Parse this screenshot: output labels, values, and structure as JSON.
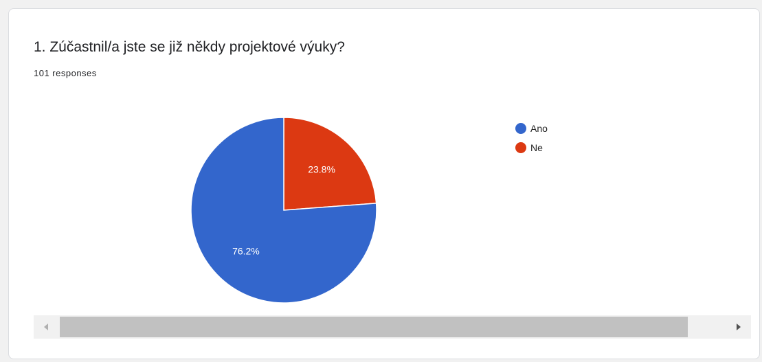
{
  "question": {
    "title": "1. Zúčastnil/a jste se již někdy projektové výuky?",
    "responses": "101 responses"
  },
  "chart_data": {
    "type": "pie",
    "categories": [
      "Ano",
      "Ne"
    ],
    "values": [
      76.2,
      23.8
    ],
    "labels": [
      "76.2%",
      "23.8%"
    ],
    "colors": [
      "#3366cc",
      "#dc3912"
    ],
    "legend_position": "right",
    "start_angle_deg": 0,
    "direction": "clockwise",
    "first_slice": "Ne"
  },
  "legend": {
    "items": [
      {
        "label": "Ano",
        "color": "#3366cc"
      },
      {
        "label": "Ne",
        "color": "#dc3912"
      }
    ]
  }
}
